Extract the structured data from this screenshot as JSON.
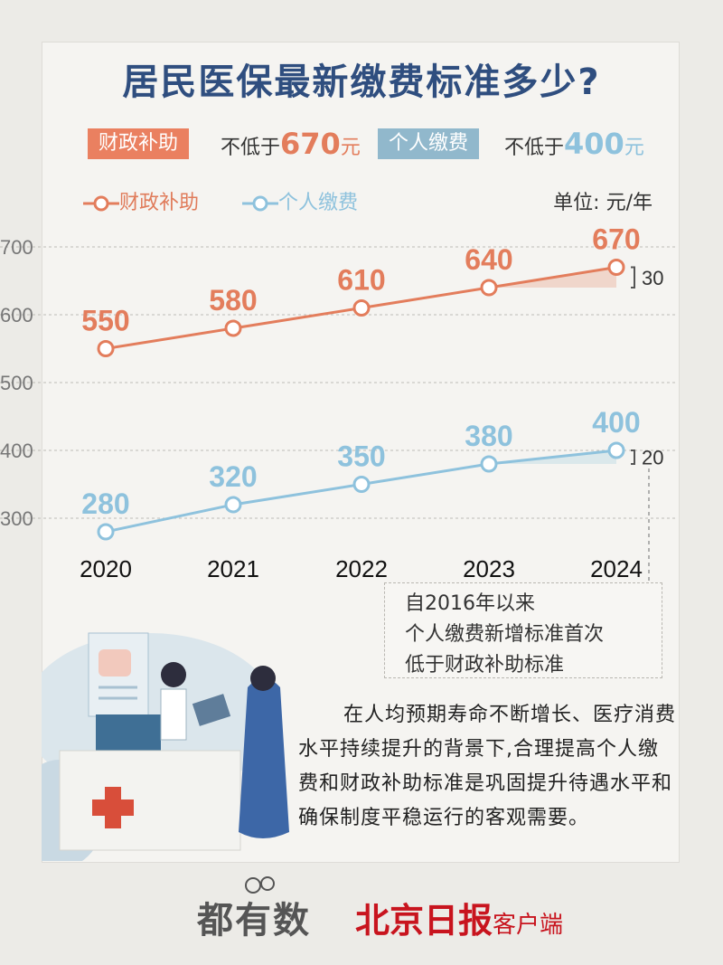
{
  "title": "居民医保最新缴费标准多少?",
  "tags": {
    "gov_label": "财政补助",
    "gov_prefix": "不低于",
    "gov_value": "670",
    "gov_suffix": "元",
    "per_label": "个人缴费",
    "per_prefix": "不低于",
    "per_value": "400",
    "per_suffix": "元"
  },
  "legend": {
    "gov": "财政补助",
    "per": "个人缴费"
  },
  "unit": "单位: 元/年",
  "colors": {
    "gov": "#e37d5c",
    "per": "#8ec2dd",
    "title": "#2f4e7f"
  },
  "chart_data": {
    "type": "line",
    "categories": [
      "2020",
      "2021",
      "2022",
      "2023",
      "2024"
    ],
    "series": [
      {
        "name": "财政补助",
        "values": [
          550,
          580,
          610,
          640,
          670
        ]
      },
      {
        "name": "个人缴费",
        "values": [
          280,
          320,
          350,
          380,
          400
        ]
      }
    ],
    "yticks": [
      "700",
      "600",
      "500",
      "400",
      "300"
    ],
    "ylim": [
      270,
      720
    ],
    "annotations": [
      "30",
      "20"
    ],
    "grid": true
  },
  "note": [
    "自2016年以来",
    "个人缴费新增标准首次",
    "低于财政补助标准"
  ],
  "paragraph": "在人均预期寿命不断增长、医疗消费水平持续提升的背景下,合理提高个人缴费和财政补助标准是巩固提升待遇水平和确保制度平稳运行的客观需要。",
  "footer": {
    "brand1": "都有数",
    "brand2_main": "北京日报",
    "brand2_sub": "客户端"
  }
}
